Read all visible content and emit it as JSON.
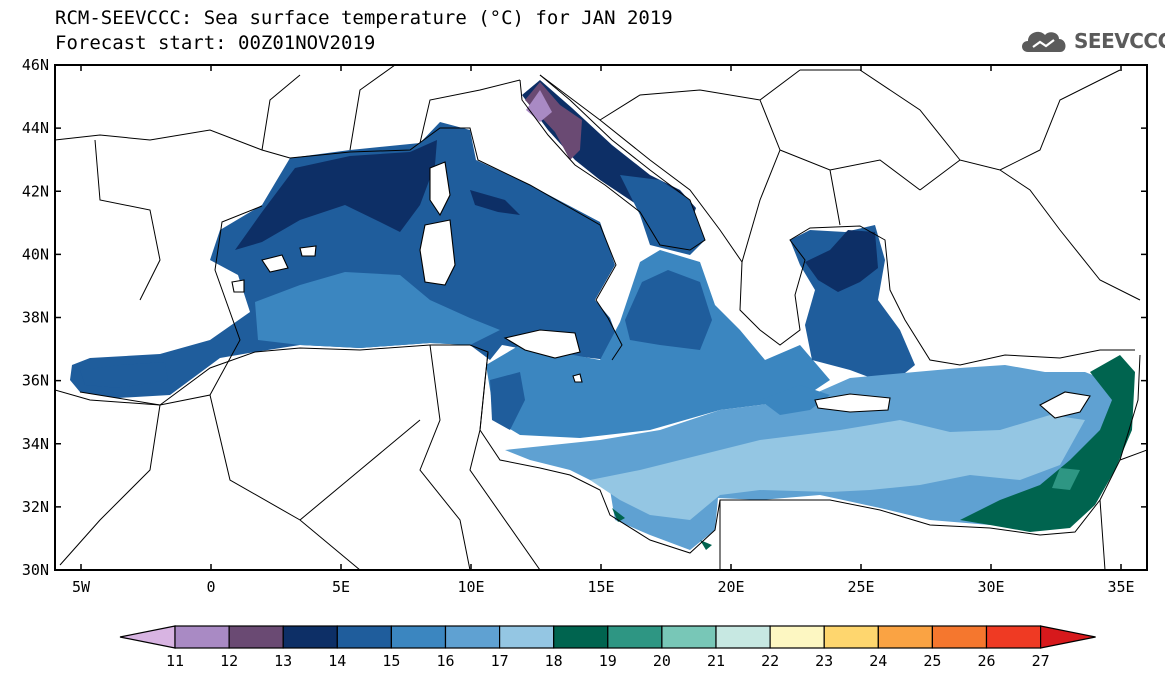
{
  "header": {
    "title_line1": "RCM-SEEVCCC: Sea surface temperature (°C) for JAN 2019",
    "title_line2": "Forecast start: 00Z01NOV2019"
  },
  "logo": {
    "icon": "cloud-logo-icon",
    "text": "SEEVCCC"
  },
  "map": {
    "lon_range": [
      -6,
      36
    ],
    "lat_range": [
      30,
      46
    ],
    "lat_ticks": [
      {
        "value": 46,
        "label": "46N"
      },
      {
        "value": 44,
        "label": "44N"
      },
      {
        "value": 42,
        "label": "42N"
      },
      {
        "value": 40,
        "label": "40N"
      },
      {
        "value": 38,
        "label": "38N"
      },
      {
        "value": 36,
        "label": "36N"
      },
      {
        "value": 34,
        "label": "34N"
      },
      {
        "value": 32,
        "label": "32N"
      },
      {
        "value": 30,
        "label": "30N"
      }
    ],
    "lon_ticks": [
      {
        "value": -5,
        "label": "5W"
      },
      {
        "value": 0,
        "label": "0"
      },
      {
        "value": 5,
        "label": "5E"
      },
      {
        "value": 10,
        "label": "10E"
      },
      {
        "value": 15,
        "label": "15E"
      },
      {
        "value": 20,
        "label": "20E"
      },
      {
        "value": 25,
        "label": "25E"
      },
      {
        "value": 30,
        "label": "30E"
      },
      {
        "value": 35,
        "label": "35E"
      }
    ]
  },
  "colorbar": {
    "labels": [
      "11",
      "12",
      "13",
      "14",
      "15",
      "16",
      "17",
      "18",
      "19",
      "20",
      "21",
      "22",
      "23",
      "24",
      "25",
      "26",
      "27"
    ],
    "colors": [
      "#d8b4e2",
      "#a98ac4",
      "#6a4a73",
      "#0d2f66",
      "#1f5d9c",
      "#3b86c0",
      "#5fa1d2",
      "#94c6e3",
      "#00644f",
      "#2e9683",
      "#78c7b7",
      "#c7e8e2",
      "#fdf7c2",
      "#fed66e",
      "#faa343",
      "#f5772e",
      "#ef3a23",
      "#d7191c"
    ]
  }
}
